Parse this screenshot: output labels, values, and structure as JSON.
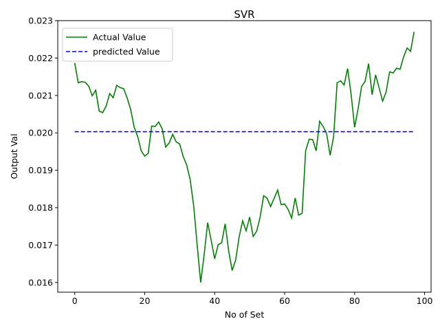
{
  "chart_data": {
    "type": "line",
    "title": "SVR",
    "xlabel": "No of Set",
    "ylabel": "Output Val",
    "xlim": [
      -4.85,
      101.85
    ],
    "ylim": [
      0.01574,
      0.023
    ],
    "xticks": [
      0,
      20,
      40,
      60,
      80,
      100
    ],
    "yticks": [
      0.016,
      0.017,
      0.018,
      0.019,
      0.02,
      0.021,
      0.022,
      0.023
    ],
    "ytick_labels": [
      "0.016",
      "0.017",
      "0.018",
      "0.019",
      "0.020",
      "0.021",
      "0.022",
      "0.023"
    ],
    "grid": false,
    "legend_position": "top-left",
    "series": [
      {
        "name": "Actual Value",
        "color": "#008000",
        "style": "solid",
        "x": [
          0,
          1,
          2,
          3,
          4,
          5,
          6,
          7,
          8,
          9,
          10,
          11,
          12,
          13,
          14,
          15,
          16,
          17,
          18,
          19,
          20,
          21,
          22,
          23,
          24,
          25,
          26,
          27,
          28,
          29,
          30,
          31,
          32,
          33,
          34,
          35,
          36,
          37,
          38,
          39,
          40,
          41,
          42,
          43,
          44,
          45,
          46,
          47,
          48,
          49,
          50,
          51,
          52,
          53,
          54,
          55,
          56,
          57,
          58,
          59,
          60,
          61,
          62,
          63,
          64,
          65,
          66,
          67,
          68,
          69,
          70,
          71,
          72,
          73,
          74,
          75,
          76,
          77,
          78,
          79,
          80,
          81,
          82,
          83,
          84,
          85,
          86,
          87,
          88,
          89,
          90,
          91,
          92,
          93,
          94,
          95,
          96,
          97
        ],
        "values": [
          0.02187,
          0.02134,
          0.02137,
          0.02135,
          0.02125,
          0.02099,
          0.02114,
          0.02058,
          0.02054,
          0.02072,
          0.02105,
          0.02094,
          0.02127,
          0.02121,
          0.02118,
          0.02093,
          0.02062,
          0.02015,
          0.0199,
          0.01952,
          0.01938,
          0.01945,
          0.02018,
          0.02017,
          0.02029,
          0.02011,
          0.01962,
          0.01973,
          0.01996,
          0.01976,
          0.0197,
          0.01937,
          0.01914,
          0.01875,
          0.01805,
          0.017,
          0.016,
          0.01675,
          0.0176,
          0.01713,
          0.01663,
          0.01701,
          0.01706,
          0.01757,
          0.01685,
          0.01632,
          0.0166,
          0.01722,
          0.01765,
          0.01738,
          0.01775,
          0.01723,
          0.01737,
          0.01775,
          0.01832,
          0.01825,
          0.01803,
          0.01825,
          0.01847,
          0.01808,
          0.0181,
          0.01795,
          0.01772,
          0.01826,
          0.0178,
          0.01785,
          0.01952,
          0.01983,
          0.01982,
          0.01952,
          0.02031,
          0.02017,
          0.01998,
          0.0194,
          0.0199,
          0.02134,
          0.02139,
          0.02128,
          0.02172,
          0.02103,
          0.02015,
          0.02065,
          0.02124,
          0.02138,
          0.02185,
          0.02102,
          0.02155,
          0.0212,
          0.02085,
          0.02109,
          0.02163,
          0.0216,
          0.02173,
          0.0217,
          0.02203,
          0.02227,
          0.02218,
          0.0227
        ]
      },
      {
        "name": "predicted Value",
        "color": "#0000ff",
        "style": "dashed",
        "x": [
          0,
          97
        ],
        "values": [
          0.02003,
          0.02003
        ]
      }
    ]
  }
}
